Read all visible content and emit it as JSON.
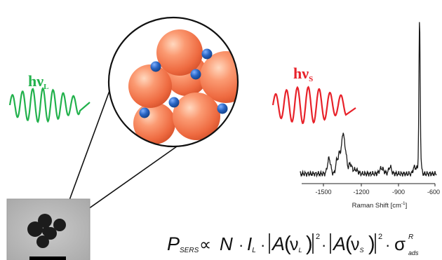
{
  "incident_light": {
    "label_main": "hν",
    "label_sub": "L",
    "color": "#22b14c"
  },
  "scattered_light": {
    "label_main": "hν",
    "label_sub": "S",
    "color": "#e8222a"
  },
  "spectrum": {
    "xlabel_main": "Raman Shift [cm",
    "xlabel_sup": "-1",
    "xlabel_end": "]",
    "ticks": [
      "-1500",
      "-1200",
      "-900",
      "-600"
    ],
    "line_color": "#1a1a1a"
  },
  "formula": {
    "p": "P",
    "p_sub": "SERS",
    "prop": "∝",
    "n": "N",
    "dot": "·",
    "i": "I",
    "i_sub": "L",
    "a": "A",
    "nu": "ν",
    "nu_l_sub": "L",
    "nu_s_sub": "S",
    "sq": "2",
    "sigma": "σ",
    "sigma_sup": "R",
    "sigma_sub": "ads"
  },
  "colors": {
    "sphere": "#f07048",
    "sphere_highlight": "#ffc9a8",
    "molecule": "#1e5aa8",
    "circle_outline": "#111111",
    "tem_background": "#b8b8b8",
    "tem_particle": "#1c1c1c",
    "scale_bar": "#000000"
  }
}
